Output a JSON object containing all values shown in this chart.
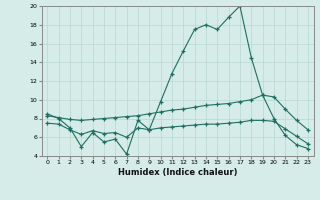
{
  "xlabel": "Humidex (Indice chaleur)",
  "background_color": "#d5ece8",
  "grid_color": "#b8d8d0",
  "line_color": "#1e6e62",
  "x_min": 0,
  "x_max": 23,
  "y_min": 4,
  "y_max": 20,
  "line1_x": [
    0,
    1,
    2,
    3,
    4,
    5,
    6,
    7,
    8,
    9,
    10,
    11,
    12,
    13,
    14,
    15,
    16,
    17,
    18,
    19,
    20,
    21,
    22,
    23
  ],
  "line1_y": [
    8.5,
    8.0,
    7.0,
    5.0,
    6.5,
    5.5,
    5.8,
    4.2,
    7.8,
    6.8,
    9.8,
    12.8,
    15.2,
    17.5,
    18.0,
    17.5,
    18.8,
    20.0,
    14.5,
    10.5,
    8.0,
    6.2,
    5.2,
    4.8
  ],
  "line2_x": [
    0,
    1,
    2,
    3,
    4,
    5,
    6,
    7,
    8,
    9,
    10,
    11,
    12,
    13,
    14,
    15,
    16,
    17,
    18,
    19,
    20,
    21,
    22,
    23
  ],
  "line2_y": [
    8.3,
    8.1,
    7.9,
    7.8,
    7.9,
    8.0,
    8.1,
    8.2,
    8.3,
    8.5,
    8.7,
    8.9,
    9.0,
    9.2,
    9.4,
    9.5,
    9.6,
    9.8,
    10.0,
    10.5,
    10.3,
    9.0,
    7.8,
    6.8
  ],
  "line3_x": [
    0,
    1,
    2,
    3,
    4,
    5,
    6,
    7,
    8,
    9,
    10,
    11,
    12,
    13,
    14,
    15,
    16,
    17,
    18,
    19,
    20,
    21,
    22,
    23
  ],
  "line3_y": [
    7.5,
    7.4,
    6.8,
    6.3,
    6.7,
    6.4,
    6.5,
    6.0,
    7.0,
    6.8,
    7.0,
    7.1,
    7.2,
    7.3,
    7.4,
    7.4,
    7.5,
    7.6,
    7.8,
    7.8,
    7.7,
    6.9,
    6.1,
    5.3
  ]
}
